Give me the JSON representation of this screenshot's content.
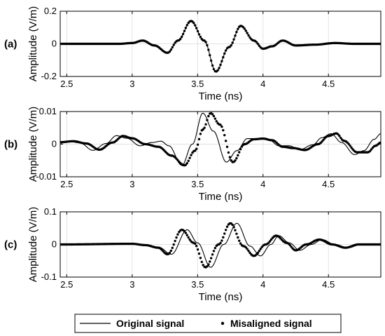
{
  "legend": {
    "original_label": "Original signal",
    "misaligned_label": "Misaligned signal"
  },
  "chart_data": [
    {
      "type": "line",
      "panel_label": "(a)",
      "xlabel": "Time (ns)",
      "ylabel": "Amplitude (V/m)",
      "xlim": [
        2.45,
        4.9
      ],
      "ylim": [
        -0.2,
        0.2
      ],
      "yticks": [
        -0.2,
        0,
        0.2
      ],
      "yticklabels": [
        "-0.2",
        "0",
        "0.2"
      ],
      "xticks": [
        2.5,
        3,
        3.5,
        4,
        4.5
      ],
      "xticklabels": [
        "2.5",
        "3",
        "3.5",
        "4",
        "4.5"
      ],
      "series": [
        {
          "name": "Original signal",
          "style": "line",
          "points": [
            [
              2.45,
              0
            ],
            [
              2.9,
              0
            ],
            [
              3.0,
              0.005
            ],
            [
              3.08,
              0.02
            ],
            [
              3.17,
              -0.01
            ],
            [
              3.27,
              -0.055
            ],
            [
              3.35,
              0.02
            ],
            [
              3.45,
              0.14
            ],
            [
              3.55,
              0.02
            ],
            [
              3.64,
              -0.17
            ],
            [
              3.74,
              -0.02
            ],
            [
              3.83,
              0.11
            ],
            [
              3.93,
              0.02
            ],
            [
              4.0,
              -0.03
            ],
            [
              4.07,
              -0.015
            ],
            [
              4.15,
              0.02
            ],
            [
              4.25,
              -0.01
            ],
            [
              4.4,
              -0.005
            ],
            [
              4.55,
              0.005
            ],
            [
              4.7,
              0
            ],
            [
              4.9,
              0
            ]
          ]
        },
        {
          "name": "Misaligned signal",
          "style": "points",
          "points": [
            [
              2.45,
              0
            ],
            [
              2.9,
              0
            ],
            [
              3.0,
              0.005
            ],
            [
              3.08,
              0.02
            ],
            [
              3.17,
              -0.01
            ],
            [
              3.27,
              -0.055
            ],
            [
              3.35,
              0.02
            ],
            [
              3.45,
              0.14
            ],
            [
              3.55,
              0.02
            ],
            [
              3.64,
              -0.17
            ],
            [
              3.74,
              -0.02
            ],
            [
              3.83,
              0.11
            ],
            [
              3.93,
              0.02
            ],
            [
              4.0,
              -0.03
            ],
            [
              4.07,
              -0.015
            ],
            [
              4.15,
              0.02
            ],
            [
              4.25,
              -0.01
            ],
            [
              4.4,
              -0.005
            ],
            [
              4.55,
              0.005
            ],
            [
              4.7,
              0
            ],
            [
              4.9,
              0
            ]
          ]
        }
      ]
    },
    {
      "type": "line",
      "panel_label": "(b)",
      "xlabel": "Time (ns)",
      "ylabel": "Amplitude (V/m)",
      "xlim": [
        2.45,
        4.9
      ],
      "ylim": [
        -0.01,
        0.01
      ],
      "yticks": [
        -0.01,
        0,
        0.01
      ],
      "yticklabels": [
        "-0.01",
        "0",
        "0.01"
      ],
      "xticks": [
        2.5,
        3,
        3.5,
        4,
        4.5
      ],
      "xticklabels": [
        "2.5",
        "3",
        "3.5",
        "4",
        "4.5"
      ],
      "series": [
        {
          "name": "Original signal",
          "style": "line",
          "points": [
            [
              2.45,
              0.0003
            ],
            [
              2.52,
              0.0008
            ],
            [
              2.6,
              0.0004
            ],
            [
              2.7,
              -0.0019
            ],
            [
              2.8,
              0.0002
            ],
            [
              2.88,
              0.0026
            ],
            [
              2.96,
              0.0018
            ],
            [
              3.06,
              -0.0005
            ],
            [
              3.15,
              0.0005
            ],
            [
              3.22,
              0.0009
            ],
            [
              3.28,
              -0.0005
            ],
            [
              3.38,
              -0.0065
            ],
            [
              3.46,
              0
            ],
            [
              3.54,
              0.0095
            ],
            [
              3.62,
              0.004
            ],
            [
              3.72,
              -0.0055
            ],
            [
              3.8,
              -0.002
            ],
            [
              3.88,
              0.0017
            ],
            [
              3.95,
              0.0017
            ],
            [
              4.0,
              0.0017
            ],
            [
              4.05,
              0.0012
            ],
            [
              4.12,
              -0.0005
            ],
            [
              4.2,
              -0.0005
            ],
            [
              4.28,
              -0.0017
            ],
            [
              4.38,
              -0.0002
            ],
            [
              4.45,
              0.002
            ],
            [
              4.52,
              0.0032
            ],
            [
              4.6,
              0.0005
            ],
            [
              4.7,
              -0.0032
            ],
            [
              4.77,
              -0.002
            ],
            [
              4.85,
              0.0015
            ],
            [
              4.9,
              0.0032
            ]
          ]
        },
        {
          "name": "Misaligned signal",
          "style": "points",
          "points": [
            [
              2.45,
              0.0006
            ],
            [
              2.55,
              0.0009
            ],
            [
              2.65,
              0.0002
            ],
            [
              2.75,
              -0.0017
            ],
            [
              2.85,
              0.0005
            ],
            [
              2.93,
              0.0025
            ],
            [
              3.0,
              0.0018
            ],
            [
              3.1,
              0
            ],
            [
              3.2,
              -0.0008
            ],
            [
              3.3,
              -0.0035
            ],
            [
              3.4,
              -0.0065
            ],
            [
              3.48,
              -0.002
            ],
            [
              3.54,
              0.0045
            ],
            [
              3.6,
              0.0095
            ],
            [
              3.67,
              0.006
            ],
            [
              3.77,
              -0.0055
            ],
            [
              3.86,
              0
            ],
            [
              3.93,
              0.0015
            ],
            [
              4.0,
              0.0017
            ],
            [
              4.07,
              0.0012
            ],
            [
              4.15,
              -0.0008
            ],
            [
              4.23,
              -0.0012
            ],
            [
              4.32,
              -0.0018
            ],
            [
              4.42,
              0
            ],
            [
              4.5,
              0.0025
            ],
            [
              4.56,
              0.0033
            ],
            [
              4.62,
              0.001
            ],
            [
              4.72,
              -0.0025
            ],
            [
              4.8,
              -0.0025
            ],
            [
              4.86,
              -0.0005
            ],
            [
              4.9,
              0.0005
            ]
          ]
        }
      ]
    },
    {
      "type": "line",
      "panel_label": "(c)",
      "xlabel": "Time (ns)",
      "ylabel": "Amplitude (V/m)",
      "xlim": [
        2.45,
        4.9
      ],
      "ylim": [
        -0.1,
        0.1
      ],
      "yticks": [
        -0.1,
        0,
        0.1
      ],
      "yticklabels": [
        "-0.1",
        "0",
        "0.1"
      ],
      "xticks": [
        2.5,
        3,
        3.5,
        4,
        4.5
      ],
      "xticklabels": [
        "2.5",
        "3",
        "3.5",
        "4",
        "4.5"
      ],
      "series": [
        {
          "name": "Original signal",
          "style": "line",
          "points": [
            [
              2.45,
              0
            ],
            [
              3.0,
              0.002
            ],
            [
              3.1,
              0
            ],
            [
              3.2,
              -0.008
            ],
            [
              3.3,
              -0.03
            ],
            [
              3.42,
              0.045
            ],
            [
              3.5,
              0.005
            ],
            [
              3.6,
              -0.07
            ],
            [
              3.7,
              0
            ],
            [
              3.8,
              0.065
            ],
            [
              3.9,
              -0.005
            ],
            [
              3.98,
              -0.035
            ],
            [
              4.06,
              0
            ],
            [
              4.12,
              0.027
            ],
            [
              4.2,
              0.005
            ],
            [
              4.28,
              -0.018
            ],
            [
              4.37,
              0
            ],
            [
              4.45,
              0.015
            ],
            [
              4.55,
              0
            ],
            [
              4.65,
              -0.01
            ],
            [
              4.75,
              0
            ],
            [
              4.9,
              0
            ]
          ]
        },
        {
          "name": "Misaligned signal",
          "style": "points",
          "points": [
            [
              2.45,
              0
            ],
            [
              3.0,
              0.002
            ],
            [
              3.1,
              -0.002
            ],
            [
              3.2,
              -0.01
            ],
            [
              3.27,
              -0.03
            ],
            [
              3.38,
              0.045
            ],
            [
              3.47,
              0.005
            ],
            [
              3.56,
              -0.07
            ],
            [
              3.66,
              0
            ],
            [
              3.75,
              0.065
            ],
            [
              3.85,
              -0.005
            ],
            [
              3.93,
              -0.035
            ],
            [
              4.02,
              0
            ],
            [
              4.1,
              0.027
            ],
            [
              4.18,
              0.005
            ],
            [
              4.25,
              -0.018
            ],
            [
              4.33,
              0
            ],
            [
              4.43,
              0.015
            ],
            [
              4.53,
              0
            ],
            [
              4.63,
              -0.01
            ],
            [
              4.73,
              0
            ],
            [
              4.9,
              0
            ]
          ]
        }
      ]
    }
  ]
}
